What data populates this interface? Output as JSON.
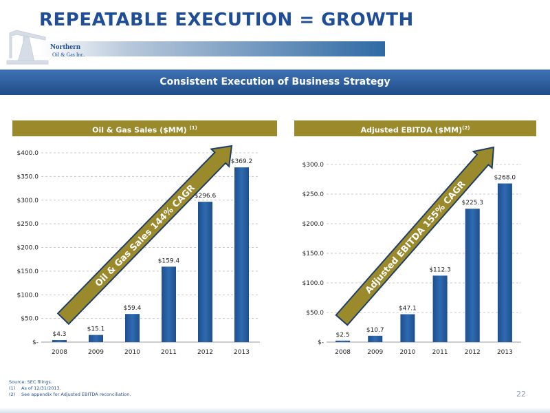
{
  "header": {
    "title": "REPEATABLE EXECUTION = GROWTH"
  },
  "logo": {
    "line1": "Northern",
    "line2": "Oil & Gas Inc."
  },
  "banner": {
    "text": "Consistent Execution of Business Strategy"
  },
  "footnotes": {
    "source": "Source: SEC filings.",
    "note1_num": "(1)",
    "note1": "As of 12/31/2013.",
    "note2_num": "(2)",
    "note2": "See appendix for Adjusted EBITDA reconciliation."
  },
  "page_number": "22",
  "colors": {
    "title": "#1f4e96",
    "banner": "#2d5d9c",
    "header_gold": "#9b8a2b",
    "bar": "#2f6ab0",
    "arrow": "#9b8a2b"
  },
  "chart_headers": [
    {
      "title": "Oil & Gas Sales  ($MM) ",
      "sup": "(1)"
    },
    {
      "title": "Adjusted EBITDA ($MM)",
      "sup": "(2)"
    }
  ],
  "chart_data": [
    {
      "type": "bar",
      "categories": [
        "2008",
        "2009",
        "2010",
        "2011",
        "2012",
        "2013"
      ],
      "values": [
        4.3,
        15.1,
        59.4,
        159.4,
        296.6,
        369.2
      ],
      "data_labels": [
        "$4.3",
        "$15.1",
        "$59.4",
        "$159.4",
        "$296.6",
        "$369.2"
      ],
      "yticks": [
        0,
        50,
        100,
        150,
        200,
        250,
        300,
        350,
        400
      ],
      "ytick_labels": [
        "$-",
        "$50.0",
        "$100.0",
        "$150.0",
        "$200.0",
        "$250.0",
        "$300.0",
        "$350.0",
        "$400.0"
      ],
      "ylim": [
        0,
        400
      ],
      "grid": true,
      "annotation": "Oil & Gas Sales 144% CAGR"
    },
    {
      "type": "bar",
      "categories": [
        "2008",
        "2009",
        "2010",
        "2011",
        "2012",
        "2013"
      ],
      "values": [
        2.5,
        10.7,
        47.1,
        112.3,
        225.3,
        268.0
      ],
      "data_labels": [
        "$2.5",
        "$10.7",
        "$47.1",
        "$112.3",
        "$225.3",
        "$268.0"
      ],
      "yticks": [
        0,
        50,
        100,
        150,
        200,
        250,
        300
      ],
      "ytick_labels": [
        "$-",
        "$50.0",
        "$100.0",
        "$150.0",
        "$200.0",
        "$250.0",
        "$300.0"
      ],
      "ylim": [
        0,
        300
      ],
      "grid": true,
      "annotation": "Adjusted EBITDA 155% CAGR"
    }
  ]
}
